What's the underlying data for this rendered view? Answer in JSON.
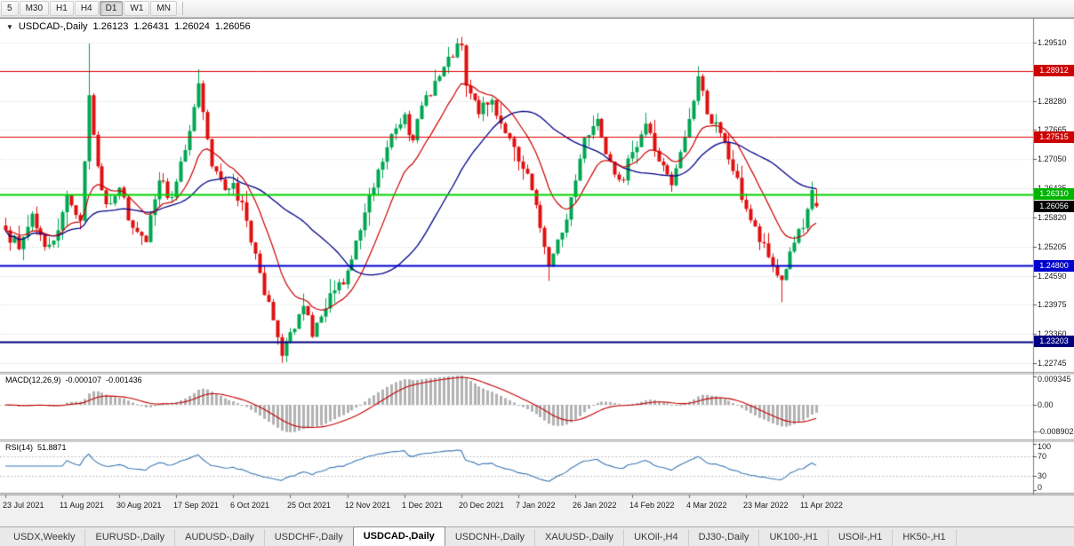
{
  "toolbar": {
    "timeframes": [
      "5",
      "M30",
      "H1",
      "H4",
      "D1",
      "W1",
      "MN"
    ],
    "active": "D1"
  },
  "chart": {
    "title": {
      "dropdown_icon": "▼",
      "symbol": "USDCAD-,Daily",
      "open": "1.26123",
      "high": "1.26431",
      "low": "1.26024",
      "close": "1.26056"
    },
    "price_axis_ticks": [
      "1.29510",
      "1.28280",
      "1.27665",
      "1.27050",
      "1.26435",
      "1.25820",
      "1.25205",
      "1.24590",
      "1.23975",
      "1.23360",
      "1.22745"
    ],
    "hlines": [
      {
        "price": 1.28912,
        "label": "1.28912",
        "line_color": "#dd0000",
        "badge_color": "#cc0000",
        "width": 1,
        "name": "resistance-1-28912"
      },
      {
        "price": 1.27515,
        "label": "1.27515",
        "line_color": "#dd0000",
        "badge_color": "#cc0000",
        "width": 1,
        "name": "resistance-1-27515"
      },
      {
        "price": 1.2631,
        "label": "1.26310",
        "line_color": "#00d300",
        "badge_color": "#00b400",
        "width": 2,
        "name": "level-1-26310"
      },
      {
        "price": 1.248,
        "label": "1.24800",
        "line_color": "#0000cd",
        "badge_color": "#0000cd",
        "width": 2,
        "name": "support-1-24800"
      },
      {
        "price": 1.23203,
        "label": "1.23203",
        "line_color": "#000080",
        "badge_color": "#000080",
        "width": 2,
        "name": "support-1-23203"
      }
    ],
    "current_price": {
      "label": "1.26056",
      "value": 1.26056,
      "badge_color": "#000000"
    }
  },
  "macd": {
    "label": "MACD(12,26,9)",
    "value_main": "-0.000107",
    "value_signal": "-0.001436",
    "axis": [
      "0.009345",
      "0.00",
      "-0.008902"
    ],
    "histogram_color": "#b2b2b2",
    "signal_color": "#c40000"
  },
  "rsi": {
    "label": "RSI(14)",
    "value": "51.8871",
    "axis": [
      "100",
      "70",
      "30",
      "0"
    ],
    "levels": [
      70,
      30
    ],
    "line_color": "#3c78b4"
  },
  "dates": [
    "23 Jul 2021",
    "11 Aug 2021",
    "30 Aug 2021",
    "17 Sep 2021",
    "6 Oct 2021",
    "25 Oct 2021",
    "12 Nov 2021",
    "1 Dec 2021",
    "20 Dec 2021",
    "7 Jan 2022",
    "26 Jan 2022",
    "14 Feb 2022",
    "4 Mar 2022",
    "23 Mar 2022",
    "11 Apr 2022"
  ],
  "tabs": {
    "items": [
      {
        "label": "USDX,Weekly"
      },
      {
        "label": "EURUSD-,Daily"
      },
      {
        "label": "AUDUSD-,Daily"
      },
      {
        "label": "USDCHF-,Daily"
      },
      {
        "label": "USDCAD-,Daily",
        "active": true
      },
      {
        "label": "USDCNH-,Daily"
      },
      {
        "label": "XAUUSD-,Daily"
      },
      {
        "label": "UKOil-,H4"
      },
      {
        "label": "DJ30-,Daily"
      },
      {
        "label": "UK100-,H1"
      },
      {
        "label": "USOil-,H1"
      },
      {
        "label": "HK50-,H1"
      }
    ]
  },
  "theme": {
    "chrome_bg": "#f0f0f0",
    "pane_bg": "#ffffff",
    "grid": "#d6d6d6",
    "scale_line": "#7f7f7f",
    "separator": "#9a9a9a"
  },
  "chart_data": {
    "type": "candlestick",
    "symbol": "USDCAD",
    "timeframe": "Daily",
    "bars": 186,
    "bars_per_label": 13,
    "y_range": [
      1.2951,
      1.22745
    ],
    "macd_axis_range": [
      0.009345,
      -0.008902
    ],
    "rsi_axis_range": [
      0,
      100
    ],
    "up_color": "#00a651",
    "down_color": "#e01010",
    "ma_fast_color": "#cc0000",
    "ma_slow_color": "#000089",
    "indicators": {
      "ma_fast": "EMA 13",
      "ma_slow": "SMA 34",
      "macd": [
        12,
        26,
        9
      ],
      "rsi": 14
    },
    "anchor_closes": [
      [
        0,
        1.2555
      ],
      [
        3,
        1.2515
      ],
      [
        6,
        1.259
      ],
      [
        9,
        1.252
      ],
      [
        12,
        1.2555
      ],
      [
        14,
        1.263
      ],
      [
        17,
        1.2575
      ],
      [
        19,
        1.284
      ],
      [
        21,
        1.269
      ],
      [
        23,
        1.261
      ],
      [
        26,
        1.2645
      ],
      [
        29,
        1.256
      ],
      [
        32,
        1.253
      ],
      [
        35,
        1.266
      ],
      [
        38,
        1.2625
      ],
      [
        40,
        1.27
      ],
      [
        43,
        1.2815
      ],
      [
        44,
        1.2865
      ],
      [
        47,
        1.269
      ],
      [
        50,
        1.264
      ],
      [
        52,
        1.2655
      ],
      [
        55,
        1.2575
      ],
      [
        58,
        1.2465
      ],
      [
        61,
        1.2365
      ],
      [
        63,
        1.229
      ],
      [
        65,
        1.234
      ],
      [
        68,
        1.2395
      ],
      [
        70,
        1.233
      ],
      [
        73,
        1.239
      ],
      [
        76,
        1.2445
      ],
      [
        78,
        1.247
      ],
      [
        81,
        1.2555
      ],
      [
        84,
        1.2645
      ],
      [
        87,
        1.273
      ],
      [
        89,
        1.277
      ],
      [
        91,
        1.28
      ],
      [
        93,
        1.2745
      ],
      [
        96,
        1.284
      ],
      [
        99,
        1.288
      ],
      [
        102,
        1.292
      ],
      [
        104,
        1.2945
      ],
      [
        105,
        1.286
      ],
      [
        108,
        1.28
      ],
      [
        111,
        1.283
      ],
      [
        114,
        1.276
      ],
      [
        117,
        1.27
      ],
      [
        120,
        1.264
      ],
      [
        122,
        1.256
      ],
      [
        124,
        1.248
      ],
      [
        127,
        1.255
      ],
      [
        130,
        1.266
      ],
      [
        132,
        1.275
      ],
      [
        135,
        1.279
      ],
      [
        138,
        1.27
      ],
      [
        141,
        1.266
      ],
      [
        143,
        1.272
      ],
      [
        146,
        1.278
      ],
      [
        149,
        1.27
      ],
      [
        152,
        1.265
      ],
      [
        154,
        1.272
      ],
      [
        156,
        1.279
      ],
      [
        158,
        1.288
      ],
      [
        160,
        1.28
      ],
      [
        163,
        1.276
      ],
      [
        166,
        1.268
      ],
      [
        169,
        1.26
      ],
      [
        172,
        1.253
      ],
      [
        175,
        1.248
      ],
      [
        177,
        1.245
      ],
      [
        179,
        1.251
      ],
      [
        182,
        1.256
      ],
      [
        184,
        1.264
      ],
      [
        185,
        1.26056
      ]
    ],
    "extremes": [
      {
        "i": 19,
        "high": 1.2949
      },
      {
        "i": 44,
        "high": 1.2895
      },
      {
        "i": 63,
        "low": 1.2275
      },
      {
        "i": 104,
        "high": 1.2963
      },
      {
        "i": 124,
        "low": 1.2448
      },
      {
        "i": 158,
        "high": 1.2901
      },
      {
        "i": 177,
        "low": 1.2403
      }
    ],
    "last_bar": {
      "open": 1.26123,
      "high": 1.26431,
      "low": 1.26024,
      "close": 1.26056
    },
    "noise": 0.0034,
    "wick": 0.0016
  }
}
